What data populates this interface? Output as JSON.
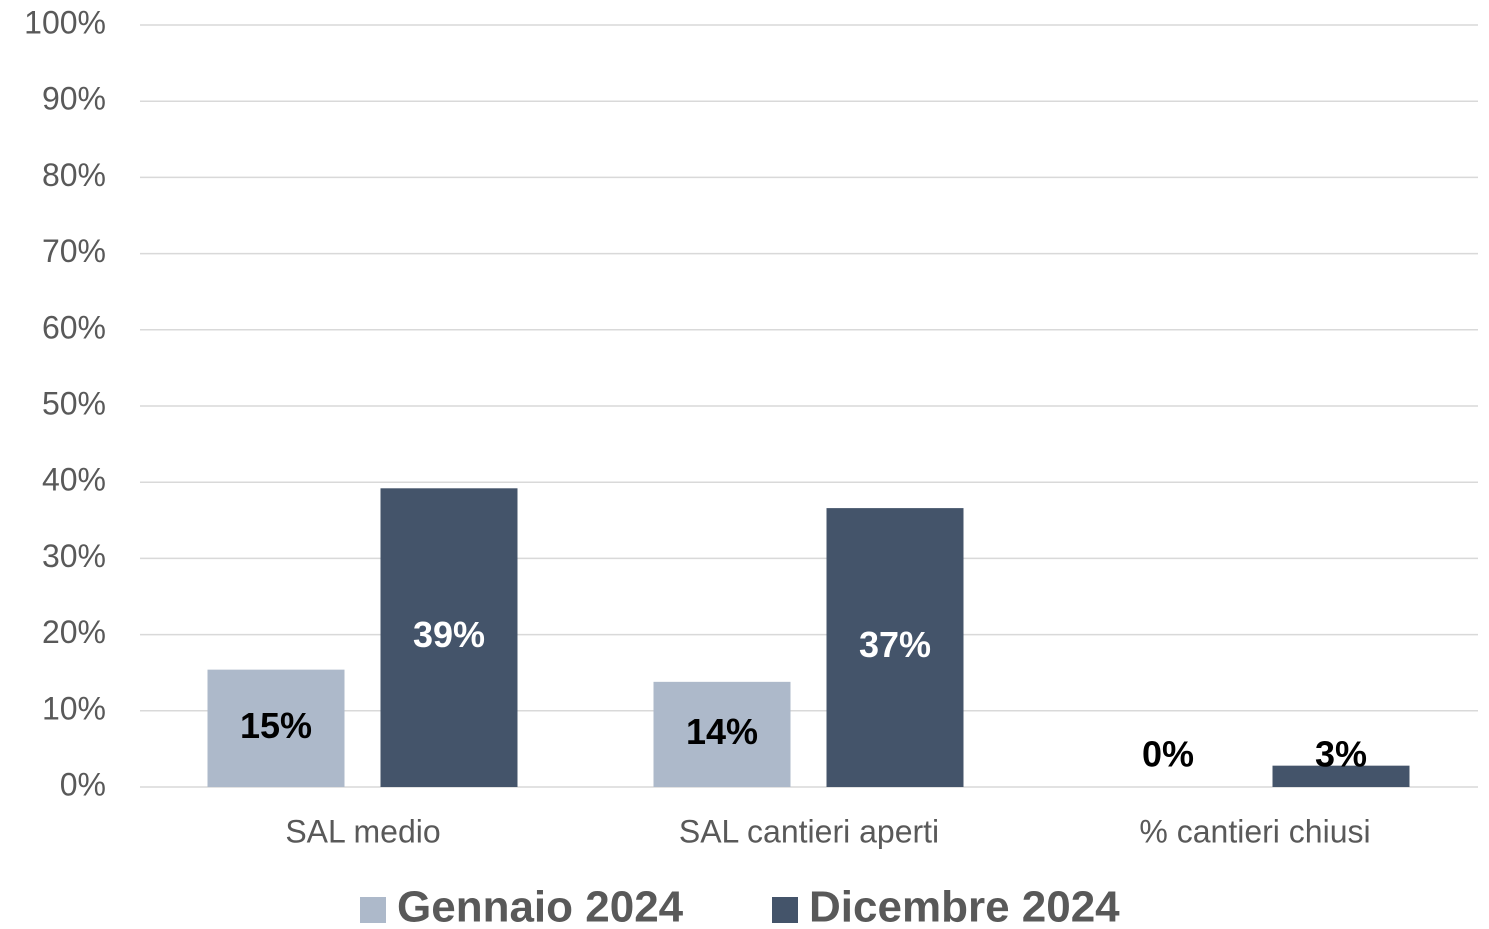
{
  "chart_data": {
    "type": "bar",
    "categories": [
      "SAL medio",
      "SAL cantieri aperti",
      "% cantieri chiusi"
    ],
    "series": [
      {
        "name": "Gennaio 2024",
        "color": "#adb9ca",
        "values": [
          15.4,
          13.8,
          0
        ],
        "value_labels": [
          "15%",
          "14%",
          "0%"
        ]
      },
      {
        "name": "Dicembre 2024",
        "color": "#44546a",
        "values": [
          39.2,
          36.6,
          2.8
        ],
        "value_labels": [
          "39%",
          "37%",
          "3%"
        ]
      }
    ],
    "ylim": [
      0,
      100
    ],
    "yticks": [
      {
        "value": 0,
        "label": "0%"
      },
      {
        "value": 10,
        "label": "10%"
      },
      {
        "value": 20,
        "label": "20%"
      },
      {
        "value": 30,
        "label": "30%"
      },
      {
        "value": 40,
        "label": "40%"
      },
      {
        "value": 50,
        "label": "50%"
      },
      {
        "value": 60,
        "label": "60%"
      },
      {
        "value": 70,
        "label": "70%"
      },
      {
        "value": 80,
        "label": "80%"
      },
      {
        "value": 90,
        "label": "90%"
      },
      {
        "value": 100,
        "label": "100%"
      }
    ],
    "grid": true,
    "legend": "bottom"
  }
}
